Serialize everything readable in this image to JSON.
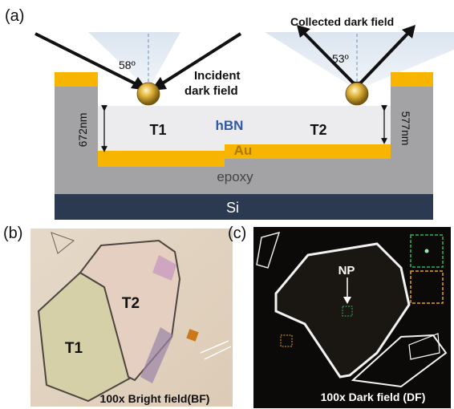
{
  "panel_a": {
    "label": "(a)",
    "incident_angle": "58º",
    "collected_angle": "53º",
    "incident_line1": "Incident",
    "incident_line2": "dark field",
    "collected_label": "Collected dark field",
    "hbn_label": "hBN",
    "au_label": "Au",
    "epoxy_label": "epoxy",
    "si_label": "Si",
    "t1_label": "T1",
    "t2_label": "T2",
    "left_thickness": "672nm",
    "right_thickness": "577nm",
    "colors": {
      "gold": "#f7b500",
      "gray_layer": "#a3a3a5",
      "hbn": "#ececee",
      "si": "#2b3a50",
      "hbn_text": "#2f5aa8",
      "au_text": "#a87a00"
    }
  },
  "panel_b": {
    "label": "(b)",
    "t1_label": "T1",
    "t2_label": "T2",
    "caption": "100x Bright field(BF)"
  },
  "panel_c": {
    "label": "(c)",
    "np_label": "NP",
    "caption": "100x Dark field (DF)",
    "green_box_color": "#2fb35a",
    "orange_box_color": "#e3a21a"
  }
}
